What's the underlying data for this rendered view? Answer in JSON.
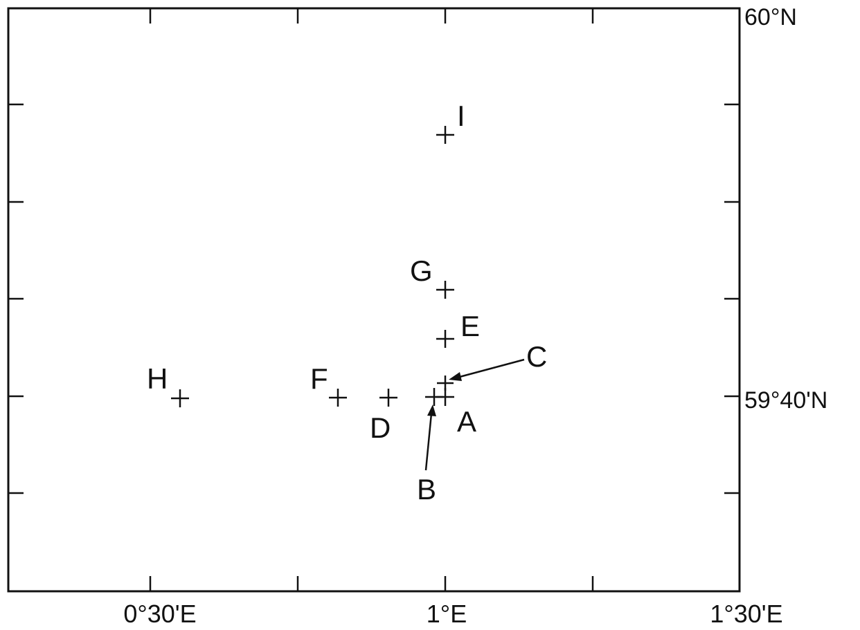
{
  "map": {
    "axes": {
      "x_labels": [
        {
          "key": "lon_0_30",
          "text": "0°30'E"
        },
        {
          "key": "lon_1_00",
          "text": "1°E"
        },
        {
          "key": "lon_1_30",
          "text": "1°30'E"
        }
      ],
      "y_labels": [
        {
          "key": "lat_60_00",
          "text": "60°N"
        },
        {
          "key": "lat_59_40",
          "text": "59°40'N"
        }
      ]
    },
    "stations": [
      {
        "id": "A",
        "label": "A"
      },
      {
        "id": "B",
        "label": "B"
      },
      {
        "id": "C",
        "label": "C"
      },
      {
        "id": "D",
        "label": "D"
      },
      {
        "id": "E",
        "label": "E"
      },
      {
        "id": "F",
        "label": "F"
      },
      {
        "id": "G",
        "label": "G"
      },
      {
        "id": "H",
        "label": "H"
      },
      {
        "id": "I",
        "label": "I"
      }
    ],
    "colors": {
      "ink": "#111111",
      "background": "#ffffff"
    }
  }
}
